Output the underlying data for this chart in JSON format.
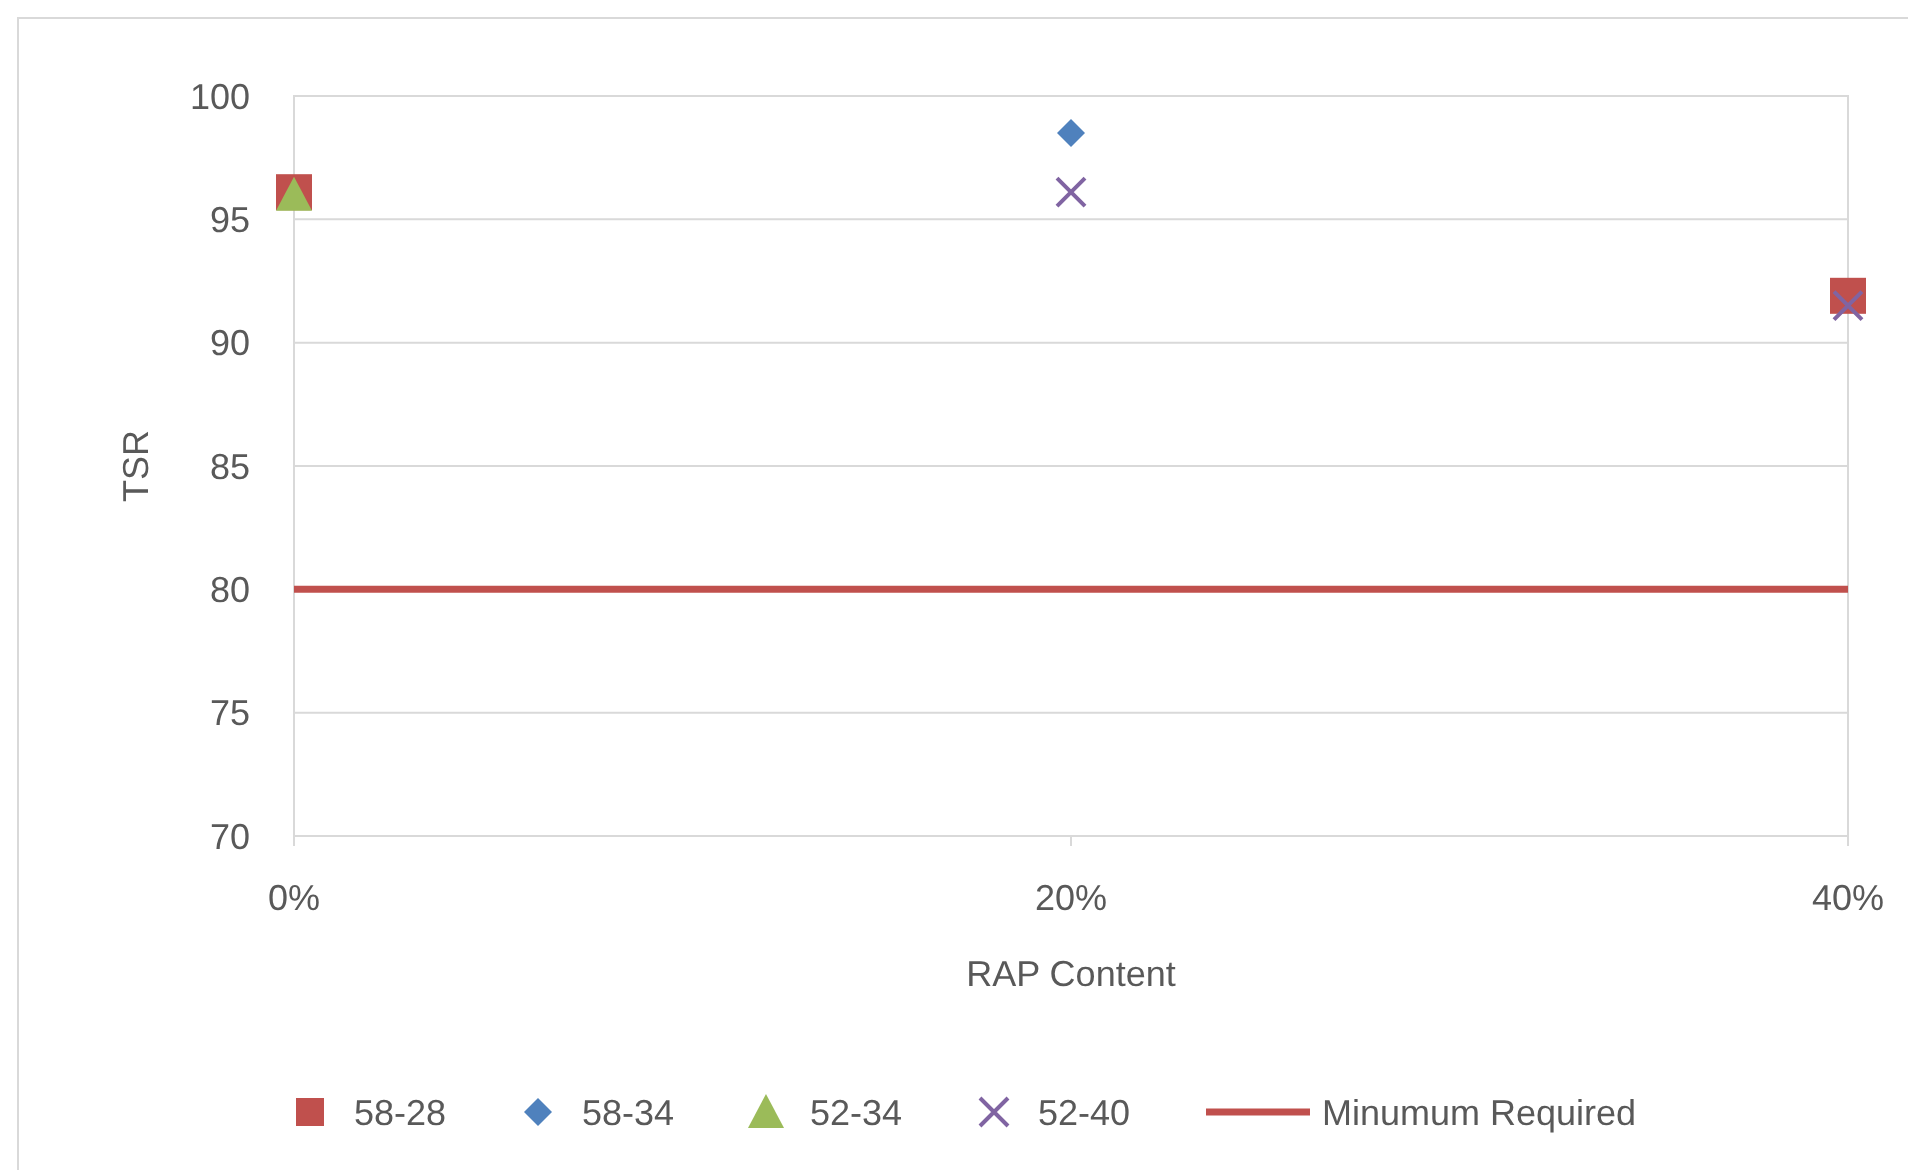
{
  "chart_data": {
    "type": "scatter",
    "xlabel": "RAP Content",
    "ylabel": "TSR",
    "xlim": [
      0,
      40
    ],
    "xticks": [
      {
        "value": 0,
        "label": "0%"
      },
      {
        "value": 20,
        "label": "20%"
      },
      {
        "value": 40,
        "label": "40%"
      }
    ],
    "ylim": [
      70,
      100
    ],
    "yticks": [
      70,
      75,
      80,
      85,
      90,
      95,
      100
    ],
    "grid": "y",
    "legend": "bottom",
    "series": [
      {
        "name": "58-28",
        "color": "#c0504d",
        "marker": "square",
        "x": [
          0,
          40
        ],
        "values": [
          96.1,
          91.9
        ]
      },
      {
        "name": "58-34",
        "color": "#4f81bd",
        "marker": "diamond",
        "x": [
          20
        ],
        "values": [
          98.5
        ]
      },
      {
        "name": "52-34",
        "color": "#9bbb59",
        "marker": "triangle",
        "x": [
          0
        ],
        "values": [
          96.0
        ]
      },
      {
        "name": "52-40",
        "color": "#8064a2",
        "marker": "cross",
        "x": [
          20,
          40
        ],
        "values": [
          96.1,
          91.5
        ]
      },
      {
        "name": "Minumum Required",
        "type": "line",
        "color": "#c0504d",
        "marker": "none",
        "line_style": "solid",
        "x": [
          0,
          40
        ],
        "values": [
          80,
          80
        ]
      }
    ]
  }
}
